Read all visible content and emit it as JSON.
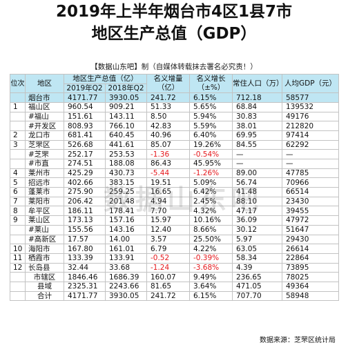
{
  "title_line1": "2019年上半年烟台市4区1县7市",
  "title_line2": "地区生产总值（GDP）",
  "subtitle_source": "【数据山东吧】",
  "subtitle_note": "制（自媒体转载抹去署名必究责！）",
  "watermark": "数据山东吧",
  "footer": "数据来源：芝罘区统计局",
  "headers": {
    "idx": "位次",
    "region": "地区",
    "gdp": "地区生产总值（亿）",
    "gdp_2019": "2019年Q2",
    "gdp_2018": "2018年Q2",
    "increase": "名义增量（亿）",
    "growth": "名义增长（±%）",
    "population": "常住人口（万）",
    "per_capita": "人均GDP（元）"
  },
  "rows": [
    {
      "idx": "",
      "region": "烟台市",
      "gdp2019": "4171.77",
      "gdp2018": "3930.05",
      "inc": "241.72",
      "growth": "6.15%",
      "pop": "712.18",
      "per": "58577",
      "hl": true
    },
    {
      "idx": "1",
      "region": "福山区",
      "gdp2019": "960.54",
      "gdp2018": "909.21",
      "inc": "51.33",
      "growth": "5.65%",
      "pop": "68.84",
      "per": "139532"
    },
    {
      "idx": "",
      "region": "#福山",
      "gdp2019": "151.61",
      "gdp2018": "143.11",
      "inc": "8.50",
      "growth": "5.94%",
      "pop": "30.83",
      "per": "49176"
    },
    {
      "idx": "",
      "region": "#开发区",
      "gdp2019": "808.93",
      "gdp2018": "766.10",
      "inc": "42.83",
      "growth": "5.59%",
      "pop": "38.01",
      "per": "212820"
    },
    {
      "idx": "2",
      "region": "龙口市",
      "gdp2019": "681.41",
      "gdp2018": "640.45",
      "inc": "40.96",
      "growth": "6.40%",
      "pop": "69.95",
      "per": "97414"
    },
    {
      "idx": "3",
      "region": "芝罘区",
      "gdp2019": "526.68",
      "gdp2018": "441.61",
      "inc": "85.07",
      "growth": "19.26%",
      "pop": "84.55",
      "per": "62292"
    },
    {
      "idx": "",
      "region": "#芝罘",
      "gdp2019": "252.17",
      "gdp2018": "253.53",
      "inc": "-1.36",
      "growth": "-0.54%",
      "pop": "—",
      "per": "—",
      "neg": true
    },
    {
      "idx": "",
      "region": "#市直",
      "gdp2019": "274.51",
      "gdp2018": "188.08",
      "inc": "86.43",
      "growth": "45.95%",
      "pop": "—",
      "per": "—"
    },
    {
      "idx": "4",
      "region": "莱州市",
      "gdp2019": "425.29",
      "gdp2018": "430.73",
      "inc": "-5.44",
      "growth": "-1.26%",
      "pop": "89.00",
      "per": "47785",
      "neg": true
    },
    {
      "idx": "5",
      "region": "招远市",
      "gdp2019": "402.66",
      "gdp2018": "383.15",
      "inc": "19.51",
      "growth": "5.09%",
      "pop": "56.74",
      "per": "70966"
    },
    {
      "idx": "6",
      "region": "蓬莱市",
      "gdp2019": "275.90",
      "gdp2018": "259.25",
      "inc": "16.65",
      "growth": "6.42%",
      "pop": "41.48",
      "per": "66514"
    },
    {
      "idx": "7",
      "region": "莱阳市",
      "gdp2019": "206.42",
      "gdp2018": "201.48",
      "inc": "4.94",
      "growth": "2.45%",
      "pop": "88.10",
      "per": "23430"
    },
    {
      "idx": "8",
      "region": "牟平区",
      "gdp2019": "186.11",
      "gdp2018": "178.41",
      "inc": "7.70",
      "growth": "4.32%",
      "pop": "47.17",
      "per": "39455"
    },
    {
      "idx": "9",
      "region": "莱山区",
      "gdp2019": "173.13",
      "gdp2018": "157.16",
      "inc": "15.97",
      "growth": "10.16%",
      "pop": "36.09",
      "per": "47972"
    },
    {
      "idx": "",
      "region": "#莱山",
      "gdp2019": "155.56",
      "gdp2018": "143.16",
      "inc": "12.40",
      "growth": "8.66%",
      "pop": "30.12",
      "per": "51647"
    },
    {
      "idx": "",
      "region": "#高新区",
      "gdp2019": "17.57",
      "gdp2018": "14.00",
      "inc": "3.57",
      "growth": "25.50%",
      "pop": "5.97",
      "per": "29430"
    },
    {
      "idx": "10",
      "region": "海阳市",
      "gdp2019": "167.80",
      "gdp2018": "161.01",
      "inc": "6.79",
      "growth": "4.22%",
      "pop": "63.05",
      "per": "26614"
    },
    {
      "idx": "11",
      "region": "栖霞市",
      "gdp2019": "133.39",
      "gdp2018": "133.91",
      "inc": "-0.52",
      "growth": "-0.39%",
      "pop": "58.34",
      "per": "22864",
      "neg": true
    },
    {
      "idx": "12",
      "region": "长岛县",
      "gdp2019": "32.44",
      "gdp2018": "33.68",
      "inc": "-1.24",
      "growth": "-3.68%",
      "pop": "4.39",
      "per": "73895",
      "neg": true
    },
    {
      "idx": "",
      "region": "市辖区",
      "gdp2019": "1846.46",
      "gdp2018": "1686.39",
      "inc": "160.07",
      "growth": "9.49%",
      "pop": "236.65",
      "per": "78025",
      "foot": true
    },
    {
      "idx": "",
      "region": "县域",
      "gdp2019": "2325.31",
      "gdp2018": "2243.66",
      "inc": "81.65",
      "growth": "3.64%",
      "pop": "471.05",
      "per": "49364",
      "foot": true
    },
    {
      "idx": "",
      "region": "合计",
      "gdp2019": "4171.77",
      "gdp2018": "3930.05",
      "inc": "241.72",
      "growth": "6.15%",
      "pop": "707.70",
      "per": "58948",
      "foot": true
    }
  ]
}
